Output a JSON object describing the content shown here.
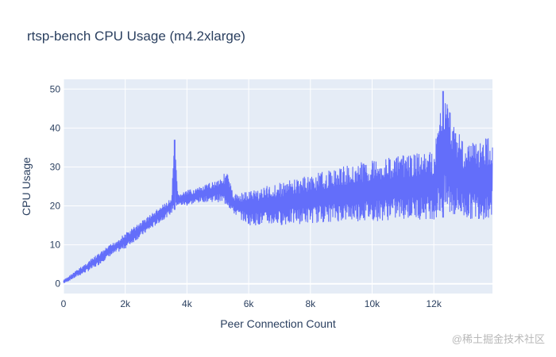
{
  "chart_data": {
    "type": "line",
    "title": "rtsp-bench CPU Usage (m4.2xlarge)",
    "xlabel": "Peer Connection Count",
    "ylabel": "CPU Usage",
    "xlim": [
      0,
      13900
    ],
    "ylim": [
      -2.5,
      52.5
    ],
    "x_ticks": [
      0,
      2000,
      4000,
      6000,
      8000,
      10000,
      12000
    ],
    "x_tick_labels": [
      "0",
      "2k",
      "4k",
      "6k",
      "8k",
      "10k",
      "12k"
    ],
    "y_ticks": [
      0,
      10,
      20,
      30,
      40,
      50
    ],
    "y_tick_labels": [
      "0",
      "10",
      "20",
      "30",
      "40",
      "50"
    ],
    "grid": true,
    "legend": "none",
    "colors": {
      "line": "#636efa",
      "plot_bg": "#e5ecf6",
      "grid": "#ffffff",
      "text": "#2a3f5f"
    },
    "series": [
      {
        "x": [
          0,
          500,
          1000,
          1500,
          2000,
          2500,
          3000,
          3500,
          3600,
          3700,
          4000,
          4500,
          5000,
          5300,
          5500,
          6000,
          7000,
          8000,
          9000,
          10000,
          11000,
          12000,
          12300,
          13000,
          13900
        ],
        "upper": [
          1,
          4,
          7,
          10,
          13,
          16,
          19,
          22,
          37,
          23,
          24,
          25,
          27,
          29,
          23,
          24,
          26,
          28,
          30,
          32,
          33,
          34,
          49.5,
          36,
          38
        ],
        "lower": [
          0,
          2,
          4,
          7,
          9,
          12,
          15,
          18,
          19,
          20,
          20,
          21,
          21,
          20,
          18,
          15,
          15,
          15.5,
          16,
          16,
          16.5,
          16.5,
          17,
          16.5,
          16.5
        ]
      }
    ]
  },
  "watermark": "@稀土掘金技术社区"
}
